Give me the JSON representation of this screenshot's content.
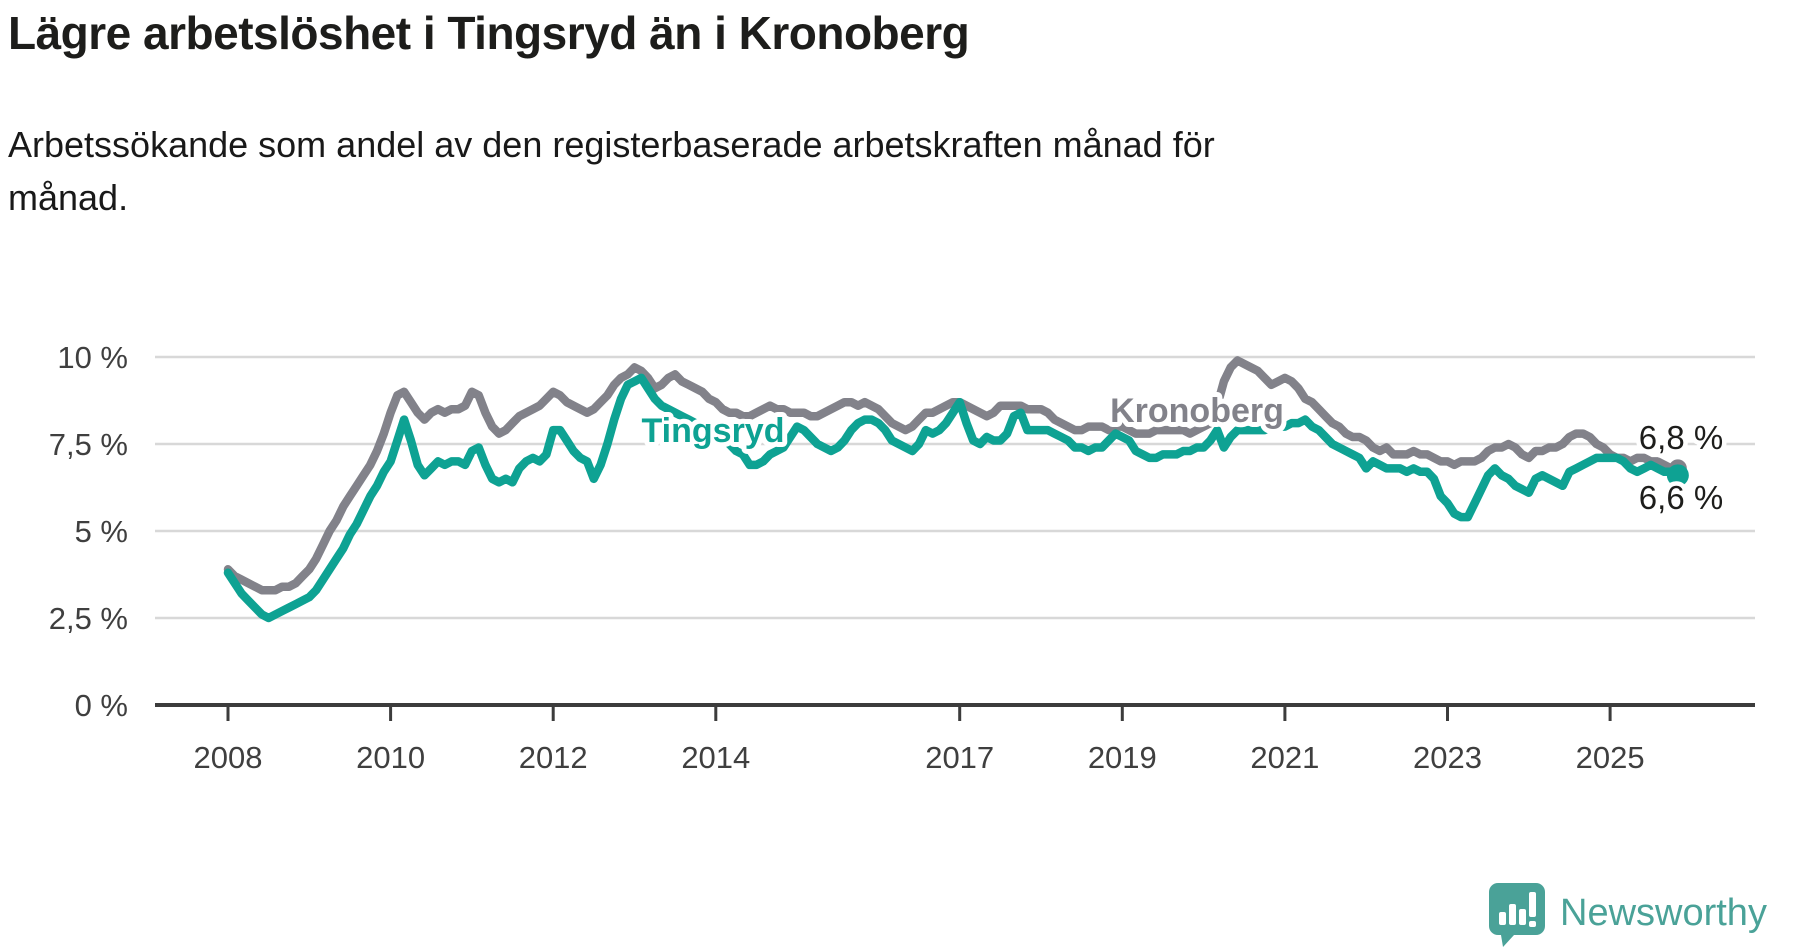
{
  "header": {
    "title": "Lägre arbetslöshet i Tingsryd än i Kronoberg",
    "subtitle_line1": "Arbetssökande som andel av den registerbaserade arbetskraften månad för",
    "subtitle_line2": "månad."
  },
  "colors": {
    "tingsryd": "#0ea293",
    "kronoberg": "#82828a",
    "grid": "#d8d8d8",
    "axis": "#3c3c3c",
    "tick_label": "#3f3f3f",
    "end_label_text": "#1d1d1b",
    "logo": "#4aa298"
  },
  "branding": {
    "logo_text": "Newsworthy"
  },
  "chart_data": {
    "type": "line",
    "unit": "%",
    "frequency": "monthly",
    "start": "2008-01",
    "end": "2025-11",
    "grid": true,
    "ylim": [
      0,
      10
    ],
    "y_axis": {
      "ticks": [
        {
          "label": "0 %",
          "value": 0
        },
        {
          "label": "2,5 %",
          "value": 2.5
        },
        {
          "label": "5 %",
          "value": 5
        },
        {
          "label": "7,5 %",
          "value": 7.5
        },
        {
          "label": "10 %",
          "value": 10
        }
      ]
    },
    "x_axis": {
      "ticks": [
        {
          "label": "2008",
          "year": 2008
        },
        {
          "label": "2010",
          "year": 2010
        },
        {
          "label": "2012",
          "year": 2012
        },
        {
          "label": "2014",
          "year": 2014
        },
        {
          "label": "2017",
          "year": 2017
        },
        {
          "label": "2019",
          "year": 2019
        },
        {
          "label": "2021",
          "year": 2021
        },
        {
          "label": "2023",
          "year": 2023
        },
        {
          "label": "2025",
          "year": 2025
        }
      ]
    },
    "series": [
      {
        "name": "Tingsryd",
        "color": "#0ea293",
        "end_label": "6,6 %",
        "end_value": 6.6,
        "values": [
          3.8,
          3.5,
          3.2,
          3.0,
          2.8,
          2.6,
          2.5,
          2.6,
          2.7,
          2.8,
          2.9,
          3.0,
          3.1,
          3.3,
          3.6,
          3.9,
          4.2,
          4.5,
          4.9,
          5.2,
          5.6,
          6.0,
          6.3,
          6.7,
          7.0,
          7.6,
          8.2,
          7.6,
          6.9,
          6.6,
          6.8,
          7.0,
          6.9,
          7.0,
          7.0,
          6.9,
          7.3,
          7.4,
          6.9,
          6.5,
          6.4,
          6.5,
          6.4,
          6.8,
          7.0,
          7.1,
          7.0,
          7.2,
          7.9,
          7.9,
          7.6,
          7.3,
          7.1,
          7.0,
          6.5,
          6.9,
          7.5,
          8.2,
          8.8,
          9.2,
          9.3,
          9.4,
          9.1,
          8.8,
          8.6,
          8.5,
          8.4,
          8.3,
          8.2,
          8.1,
          8.0,
          7.9,
          7.8,
          7.7,
          7.5,
          7.3,
          7.2,
          6.9,
          6.9,
          7.0,
          7.2,
          7.3,
          7.4,
          7.7,
          8.0,
          7.9,
          7.7,
          7.5,
          7.4,
          7.3,
          7.4,
          7.6,
          7.9,
          8.1,
          8.2,
          8.2,
          8.1,
          7.9,
          7.6,
          7.5,
          7.4,
          7.3,
          7.5,
          7.9,
          7.8,
          7.9,
          8.1,
          8.4,
          8.7,
          8.1,
          7.6,
          7.5,
          7.7,
          7.6,
          7.6,
          7.8,
          8.3,
          8.4,
          7.9,
          7.9,
          7.9,
          7.9,
          7.8,
          7.7,
          7.6,
          7.4,
          7.4,
          7.3,
          7.4,
          7.4,
          7.6,
          7.8,
          7.7,
          7.6,
          7.3,
          7.2,
          7.1,
          7.1,
          7.2,
          7.2,
          7.2,
          7.3,
          7.3,
          7.4,
          7.4,
          7.6,
          7.9,
          7.4,
          7.7,
          7.9,
          7.9,
          7.9,
          7.9,
          7.9,
          8.0,
          8.0,
          8.0,
          8.1,
          8.1,
          8.2,
          8.0,
          7.9,
          7.7,
          7.5,
          7.4,
          7.3,
          7.2,
          7.1,
          6.8,
          7.0,
          6.9,
          6.8,
          6.8,
          6.8,
          6.7,
          6.8,
          6.7,
          6.7,
          6.5,
          6.0,
          5.8,
          5.5,
          5.4,
          5.4,
          5.8,
          6.2,
          6.6,
          6.8,
          6.6,
          6.5,
          6.3,
          6.2,
          6.1,
          6.5,
          6.6,
          6.5,
          6.4,
          6.3,
          6.7,
          6.8,
          6.9,
          7.0,
          7.1,
          7.1,
          7.1,
          7.1,
          7.0,
          6.8,
          6.7,
          6.8,
          6.9,
          6.8,
          6.7,
          6.7,
          6.6
        ]
      },
      {
        "name": "Kronoberg",
        "color": "#82828a",
        "end_label": "6,8 %",
        "end_value": 6.8,
        "values": [
          3.9,
          3.7,
          3.6,
          3.5,
          3.4,
          3.3,
          3.3,
          3.3,
          3.4,
          3.4,
          3.5,
          3.7,
          3.9,
          4.2,
          4.6,
          5.0,
          5.3,
          5.7,
          6.0,
          6.3,
          6.6,
          6.9,
          7.3,
          7.8,
          8.4,
          8.9,
          9.0,
          8.7,
          8.4,
          8.2,
          8.4,
          8.5,
          8.4,
          8.5,
          8.5,
          8.6,
          9.0,
          8.9,
          8.4,
          8.0,
          7.8,
          7.9,
          8.1,
          8.3,
          8.4,
          8.5,
          8.6,
          8.8,
          9.0,
          8.9,
          8.7,
          8.6,
          8.5,
          8.4,
          8.5,
          8.7,
          8.9,
          9.2,
          9.4,
          9.5,
          9.7,
          9.6,
          9.4,
          9.1,
          9.2,
          9.4,
          9.5,
          9.3,
          9.2,
          9.1,
          9.0,
          8.8,
          8.7,
          8.5,
          8.4,
          8.4,
          8.3,
          8.3,
          8.4,
          8.5,
          8.6,
          8.5,
          8.5,
          8.4,
          8.4,
          8.4,
          8.3,
          8.3,
          8.4,
          8.5,
          8.6,
          8.7,
          8.7,
          8.6,
          8.7,
          8.6,
          8.5,
          8.3,
          8.1,
          8.0,
          7.9,
          8.0,
          8.2,
          8.4,
          8.4,
          8.5,
          8.6,
          8.7,
          8.7,
          8.6,
          8.5,
          8.4,
          8.3,
          8.4,
          8.6,
          8.6,
          8.6,
          8.6,
          8.5,
          8.5,
          8.5,
          8.4,
          8.2,
          8.1,
          8.0,
          7.9,
          7.9,
          8.0,
          8.0,
          8.0,
          7.9,
          8.0,
          8.0,
          7.9,
          7.8,
          7.8,
          7.8,
          7.9,
          7.9,
          7.9,
          7.9,
          7.9,
          7.8,
          7.9,
          8.0,
          8.1,
          8.6,
          9.3,
          9.7,
          9.9,
          9.8,
          9.7,
          9.6,
          9.4,
          9.2,
          9.3,
          9.4,
          9.3,
          9.1,
          8.8,
          8.7,
          8.5,
          8.3,
          8.1,
          8.0,
          7.8,
          7.7,
          7.7,
          7.6,
          7.4,
          7.3,
          7.4,
          7.2,
          7.2,
          7.2,
          7.3,
          7.2,
          7.2,
          7.1,
          7.0,
          7.0,
          6.9,
          7.0,
          7.0,
          7.0,
          7.1,
          7.3,
          7.4,
          7.4,
          7.5,
          7.4,
          7.2,
          7.1,
          7.3,
          7.3,
          7.4,
          7.4,
          7.5,
          7.7,
          7.8,
          7.8,
          7.7,
          7.5,
          7.4,
          7.2,
          7.1,
          7.1,
          7.0,
          7.1,
          7.1,
          7.0,
          7.0,
          6.9,
          6.8,
          6.8
        ]
      }
    ]
  }
}
